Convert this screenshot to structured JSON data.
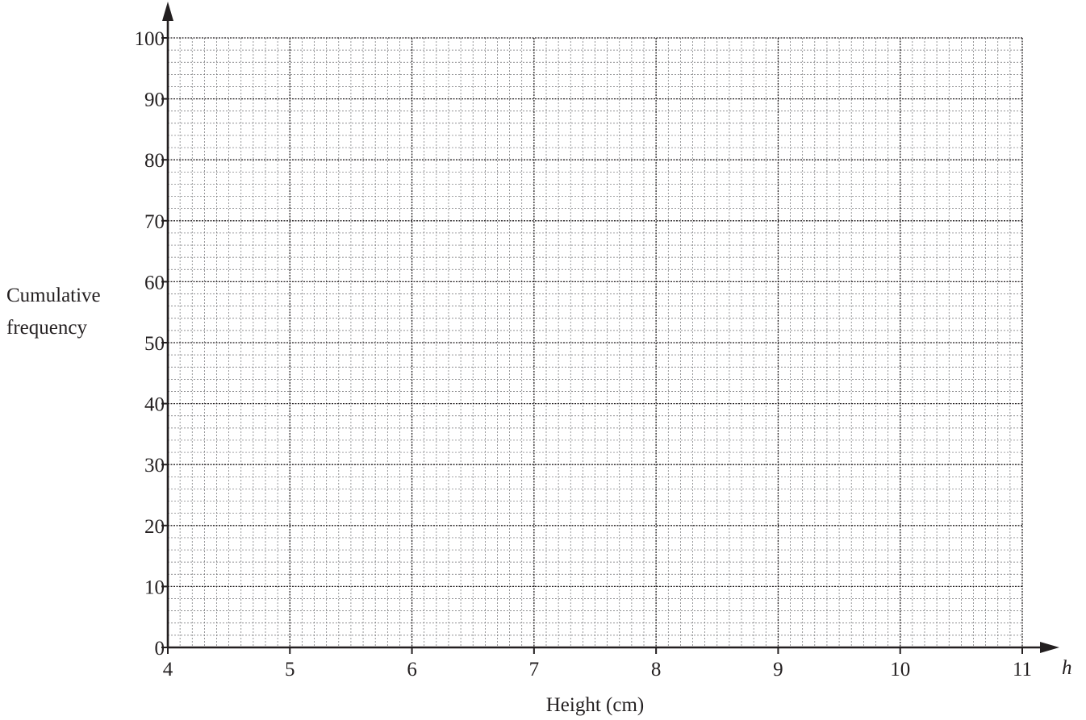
{
  "chart_data": {
    "type": "line",
    "title": "",
    "xlabel": "Height (cm)",
    "ylabel_lines": [
      "Cumulative",
      "frequency"
    ],
    "x_variable": "h",
    "xlim": [
      4,
      11
    ],
    "ylim": [
      0,
      100
    ],
    "x_ticks": [
      4,
      5,
      6,
      7,
      8,
      9,
      10,
      11
    ],
    "x_tick_labels": [
      "4",
      "5",
      "6",
      "7",
      "8",
      "9",
      "10",
      "11"
    ],
    "y_ticks": [
      0,
      10,
      20,
      30,
      40,
      50,
      60,
      70,
      80,
      90,
      100
    ],
    "y_tick_labels": [
      "0",
      "10",
      "20",
      "30",
      "40",
      "50",
      "60",
      "70",
      "80",
      "90",
      "100"
    ],
    "x_minor_step": 0.1,
    "y_minor_step": 2,
    "grid": true,
    "series": []
  },
  "colors": {
    "ink": "#231f20",
    "major_grid": "#231f20",
    "minor_grid": "#6d6e71",
    "background": "#ffffff"
  }
}
